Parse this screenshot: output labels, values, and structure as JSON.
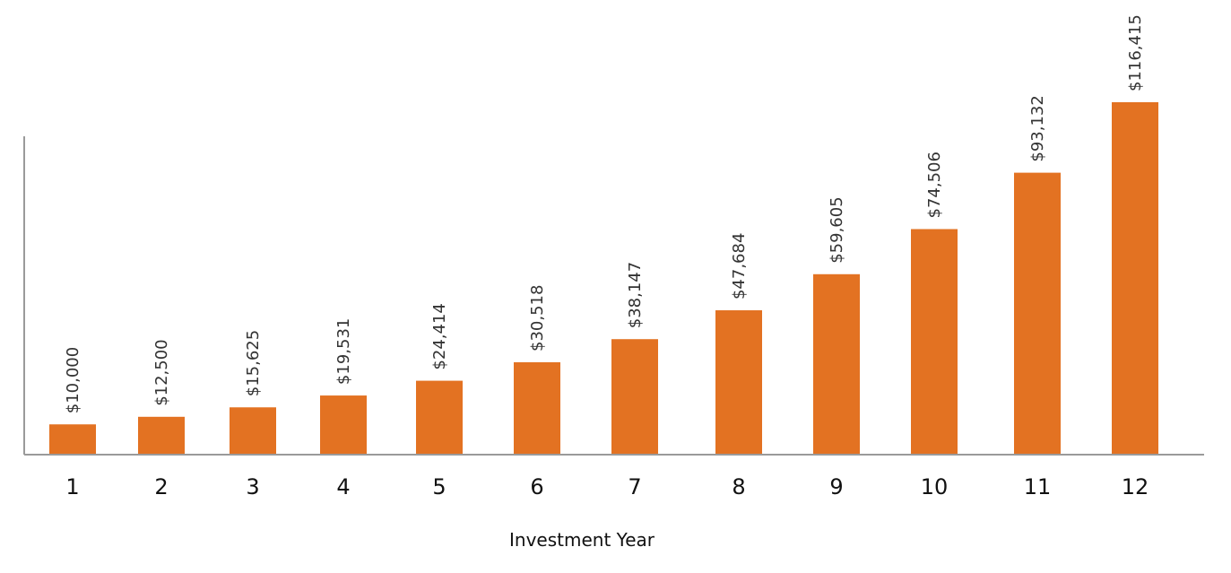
{
  "chart_data": {
    "type": "bar",
    "categories": [
      "1",
      "2",
      "3",
      "4",
      "5",
      "6",
      "7",
      "8",
      "9",
      "10",
      "11",
      "12"
    ],
    "values": [
      10000,
      12500,
      15625,
      19531,
      24414,
      30518,
      38147,
      47684,
      59605,
      74506,
      93132,
      116415
    ],
    "data_labels": [
      "$10,000",
      "$12,500",
      "$15,625",
      "$19,531",
      "$24,414",
      "$30,518",
      "$38,147",
      "$47,684",
      "$59,605",
      "$74,506",
      "$93,132",
      "$116,415"
    ],
    "xlabel": "Investment Year",
    "ylabel": "",
    "ylim": [
      0,
      130000
    ],
    "grid": false,
    "bar_color": "#E37222",
    "axis_color": "#9a9a9a"
  }
}
